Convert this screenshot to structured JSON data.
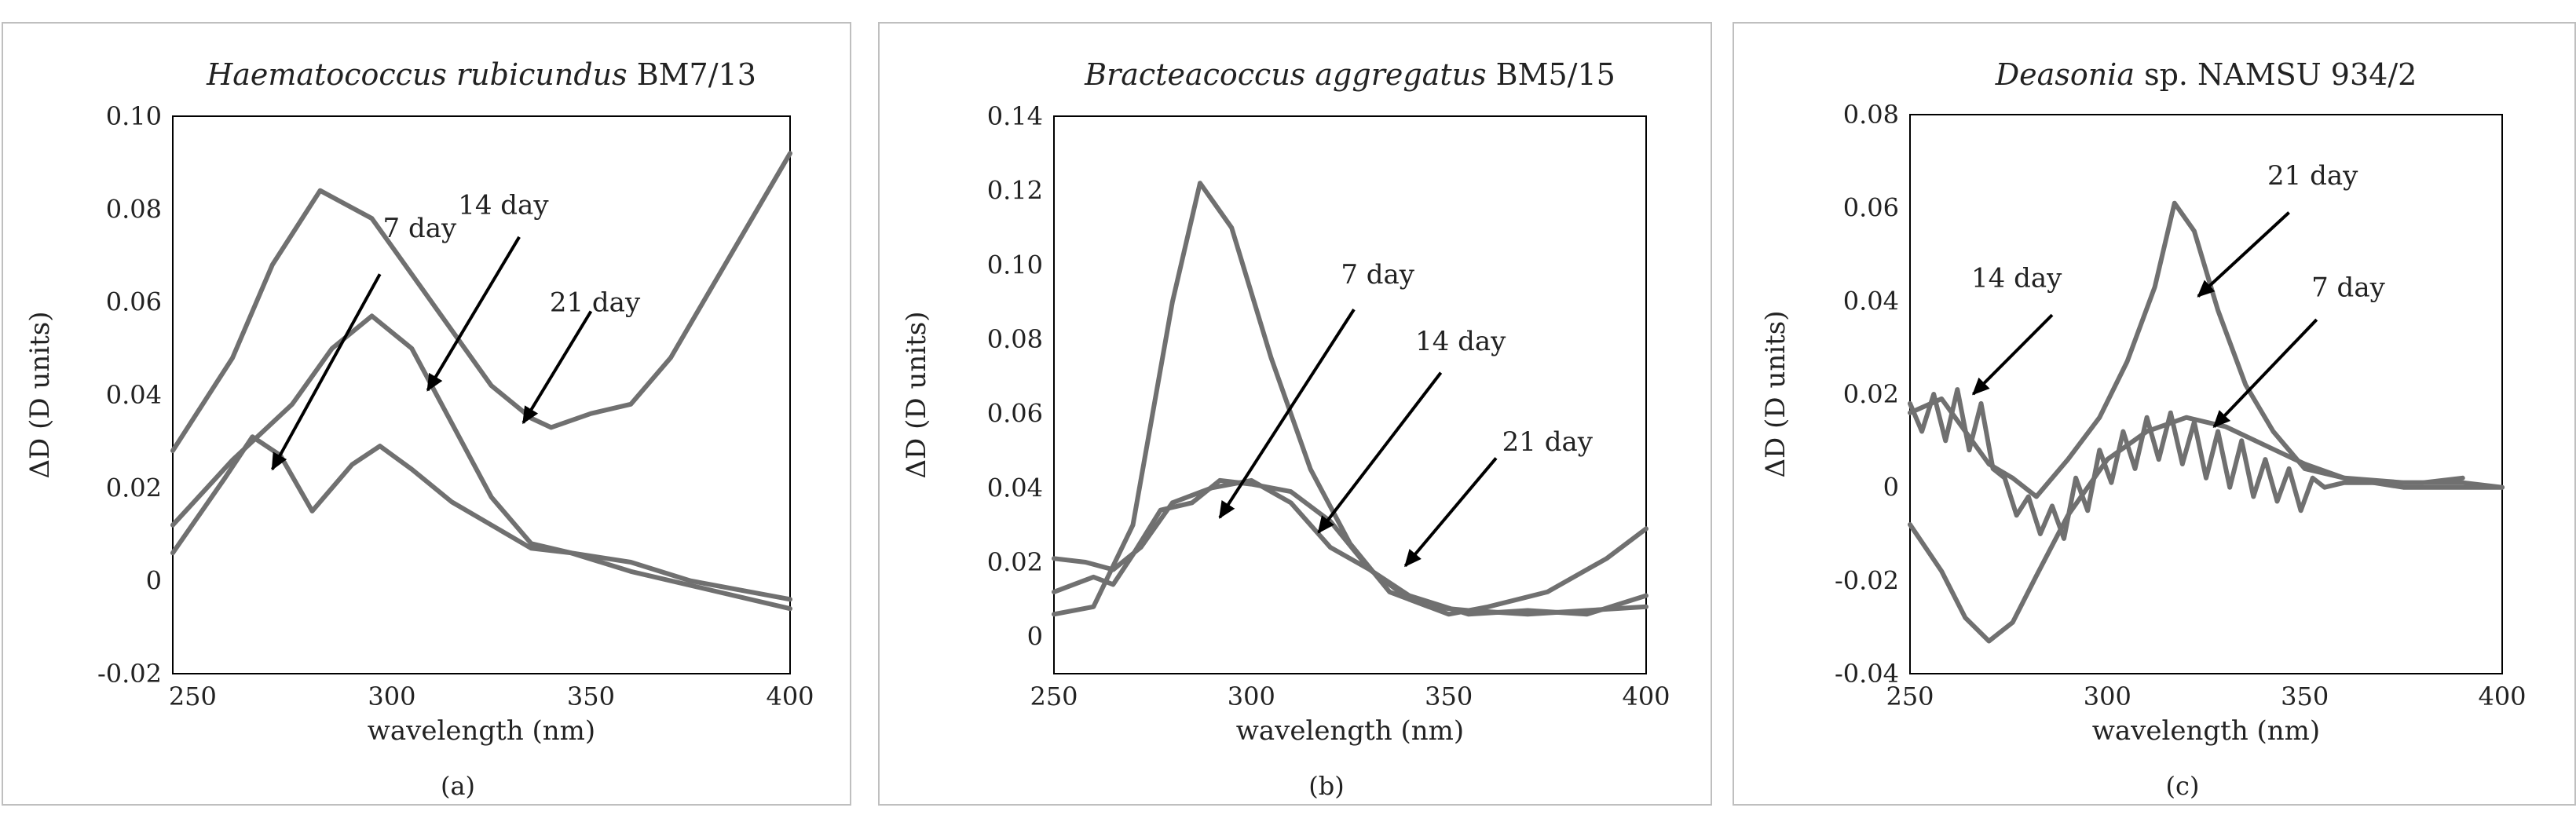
{
  "chart_data": [
    {
      "type": "line",
      "title_italic": "Haematococcus rubicundus",
      "title_rest": " BM7/13",
      "xlabel": "wavelength (nm)",
      "ylabel": "ΔD (D units)",
      "xlim": [
        245,
        400
      ],
      "ylim": [
        -0.02,
        0.1
      ],
      "xticks": [
        "250",
        "300",
        "350",
        "400"
      ],
      "xtick_values": [
        250,
        300,
        350,
        400
      ],
      "yticks": [
        "-0.02",
        "0",
        "0.02",
        "0.04",
        "0.06",
        "0.08",
        "0.10"
      ],
      "ytick_values": [
        -0.02,
        0,
        0.02,
        0.04,
        0.06,
        0.08,
        0.1
      ],
      "panel_label": "(a)",
      "grid": false,
      "series": [
        {
          "x": [
            245,
            260,
            270,
            282,
            295,
            310,
            325,
            335,
            340,
            350,
            360,
            370,
            385,
            400
          ],
          "y": [
            0.028,
            0.048,
            0.068,
            0.084,
            0.078,
            0.06,
            0.042,
            0.035,
            0.033,
            0.036,
            0.038,
            0.048,
            0.07,
            0.092
          ]
        },
        {
          "x": [
            245,
            260,
            275,
            285,
            295,
            305,
            315,
            325,
            335,
            345,
            360,
            375,
            400
          ],
          "y": [
            0.012,
            0.026,
            0.038,
            0.05,
            0.057,
            0.05,
            0.034,
            0.018,
            0.008,
            0.006,
            0.004,
            0.0,
            -0.004
          ]
        },
        {
          "x": [
            245,
            258,
            265,
            272,
            280,
            290,
            297,
            305,
            315,
            325,
            335,
            345,
            360,
            380,
            400
          ],
          "y": [
            0.006,
            0.022,
            0.031,
            0.027,
            0.015,
            0.025,
            0.029,
            0.024,
            0.017,
            0.012,
            0.007,
            0.006,
            0.002,
            -0.002,
            -0.006
          ]
        }
      ],
      "annotations": [
        {
          "text": "7 day",
          "x": 307,
          "y": 0.074,
          "ax": 297,
          "ay": 0.066,
          "tx": 270,
          "ty": 0.024
        },
        {
          "text": "14 day",
          "x": 328,
          "y": 0.079,
          "ax": 332,
          "ay": 0.074,
          "tx": 309,
          "ty": 0.041
        },
        {
          "text": "21 day",
          "x": 351,
          "y": 0.058,
          "ax": 350,
          "ay": 0.058,
          "tx": 333,
          "ty": 0.034
        }
      ]
    },
    {
      "type": "line",
      "title_italic": "Bracteacoccus aggregatus",
      "title_rest": " BM5/15",
      "xlabel": "wavelength (nm)",
      "ylabel": "ΔD (D units)",
      "xlim": [
        250,
        400
      ],
      "ylim": [
        -0.01,
        0.14
      ],
      "xticks": [
        "250",
        "300",
        "350",
        "400"
      ],
      "xtick_values": [
        250,
        300,
        350,
        400
      ],
      "yticks": [
        "0",
        "0.02",
        "0.04",
        "0.06",
        "0.08",
        "0.10",
        "0.12",
        "0.14"
      ],
      "ytick_values": [
        0,
        0.02,
        0.04,
        0.06,
        0.08,
        0.1,
        0.12,
        0.14
      ],
      "panel_label": "(b)",
      "grid": false,
      "series": [
        {
          "x": [
            250,
            260,
            270,
            280,
            287,
            295,
            305,
            315,
            325,
            335,
            345,
            355,
            370,
            385,
            400
          ],
          "y": [
            0.006,
            0.008,
            0.03,
            0.09,
            0.122,
            0.11,
            0.075,
            0.045,
            0.025,
            0.012,
            0.008,
            0.007,
            0.006,
            0.007,
            0.008
          ]
        },
        {
          "x": [
            250,
            258,
            265,
            272,
            280,
            290,
            300,
            310,
            320,
            330,
            340,
            350,
            360,
            375,
            390,
            400
          ],
          "y": [
            0.021,
            0.02,
            0.018,
            0.024,
            0.036,
            0.04,
            0.042,
            0.036,
            0.024,
            0.018,
            0.01,
            0.006,
            0.008,
            0.012,
            0.021,
            0.029
          ]
        },
        {
          "x": [
            250,
            255,
            260,
            265,
            270,
            277,
            285,
            292,
            300,
            310,
            320,
            330,
            340,
            355,
            370,
            385,
            400
          ],
          "y": [
            0.012,
            0.014,
            0.016,
            0.014,
            0.022,
            0.034,
            0.036,
            0.042,
            0.041,
            0.039,
            0.031,
            0.018,
            0.011,
            0.006,
            0.007,
            0.006,
            0.011
          ]
        }
      ],
      "annotations": [
        {
          "text": "7 day",
          "x": 332,
          "y": 0.095,
          "ax": 326,
          "ay": 0.088,
          "tx": 292,
          "ty": 0.032
        },
        {
          "text": "14 day",
          "x": 353,
          "y": 0.077,
          "ax": 348,
          "ay": 0.071,
          "tx": 317,
          "ty": 0.028
        },
        {
          "text": "21 day",
          "x": 375,
          "y": 0.05,
          "ax": 362,
          "ay": 0.048,
          "tx": 339,
          "ty": 0.019
        }
      ]
    },
    {
      "type": "line",
      "title_italic": "Deasonia",
      "title_rest": " sp. NAMSU 934/2",
      "xlabel": "wavelength (nm)",
      "ylabel": "ΔD (D units)",
      "xlim": [
        250,
        400
      ],
      "ylim": [
        -0.04,
        0.08
      ],
      "xticks": [
        "250",
        "300",
        "350",
        "400"
      ],
      "xtick_values": [
        250,
        300,
        350,
        400
      ],
      "yticks": [
        "-0.04",
        "-0.02",
        "0",
        "0.02",
        "0.04",
        "0.06",
        "0.08"
      ],
      "ytick_values": [
        -0.04,
        -0.02,
        0,
        0.02,
        0.04,
        0.06,
        0.08
      ],
      "panel_label": "(c)",
      "grid": false,
      "series": [
        {
          "x": [
            250,
            258,
            264,
            270,
            276,
            282,
            290,
            298,
            305,
            312,
            317,
            322,
            328,
            335,
            342,
            350,
            360,
            375,
            390,
            400
          ],
          "y": [
            0.016,
            0.019,
            0.012,
            0.005,
            0.002,
            -0.002,
            0.006,
            0.015,
            0.027,
            0.043,
            0.061,
            0.055,
            0.038,
            0.022,
            0.012,
            0.004,
            0.002,
            0.001,
            0.001,
            0.0
          ]
        },
        {
          "x": [
            250,
            253,
            256,
            259,
            262,
            265,
            268,
            271,
            274,
            277,
            280,
            283,
            286,
            289,
            292,
            295,
            298,
            301,
            304,
            307,
            310,
            313,
            316,
            319,
            322,
            325,
            328,
            331,
            334,
            337,
            340,
            343,
            346,
            349,
            352,
            355,
            360,
            370,
            380,
            390
          ],
          "y": [
            0.018,
            0.012,
            0.02,
            0.01,
            0.021,
            0.008,
            0.018,
            0.004,
            0.002,
            -0.006,
            -0.002,
            -0.01,
            -0.004,
            -0.011,
            0.002,
            -0.005,
            0.008,
            0.001,
            0.012,
            0.004,
            0.015,
            0.006,
            0.016,
            0.005,
            0.014,
            0.002,
            0.012,
            0.0,
            0.01,
            -0.002,
            0.006,
            -0.003,
            0.004,
            -0.005,
            0.002,
            0.0,
            0.001,
            0.001,
            0.001,
            0.002
          ]
        },
        {
          "x": [
            250,
            258,
            264,
            270,
            276,
            282,
            290,
            300,
            310,
            320,
            330,
            340,
            350,
            360,
            375,
            390,
            400
          ],
          "y": [
            -0.008,
            -0.018,
            -0.028,
            -0.033,
            -0.029,
            -0.019,
            -0.006,
            0.006,
            0.012,
            0.015,
            0.013,
            0.009,
            0.005,
            0.002,
            0.0,
            0.0,
            0.0
          ]
        }
      ],
      "annotations": [
        {
          "text": "21 day",
          "x": 352,
          "y": 0.065,
          "ax": 346,
          "ay": 0.059,
          "tx": 323,
          "ty": 0.041
        },
        {
          "text": "14 day",
          "x": 277,
          "y": 0.043,
          "ax": 286,
          "ay": 0.037,
          "tx": 266,
          "ty": 0.02
        },
        {
          "text": "7 day",
          "x": 361,
          "y": 0.041,
          "ax": 353,
          "ay": 0.036,
          "tx": 327,
          "ty": 0.013
        }
      ]
    }
  ]
}
